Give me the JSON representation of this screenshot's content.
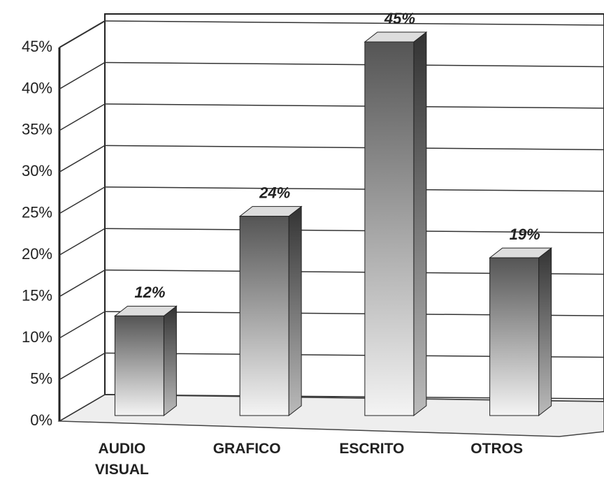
{
  "chart_data": {
    "type": "bar3d",
    "categories": [
      "AUDIO VISUAL",
      "GRAFICO",
      "ESCRITO",
      "OTROS"
    ],
    "values": [
      12,
      24,
      45,
      19
    ],
    "value_labels": [
      "12%",
      "24%",
      "45%",
      "19%"
    ],
    "ylim": [
      0,
      45
    ],
    "yticks": [
      {
        "value": 0,
        "label": "0%"
      },
      {
        "value": 5,
        "label": "5%"
      },
      {
        "value": 10,
        "label": "10%"
      },
      {
        "value": 15,
        "label": "15%"
      },
      {
        "value": 20,
        "label": "20%"
      },
      {
        "value": 25,
        "label": "25%"
      },
      {
        "value": 30,
        "label": "30%"
      },
      {
        "value": 35,
        "label": "35%"
      },
      {
        "value": 40,
        "label": "40%"
      },
      {
        "value": 45,
        "label": "45%"
      }
    ],
    "grid": true
  }
}
